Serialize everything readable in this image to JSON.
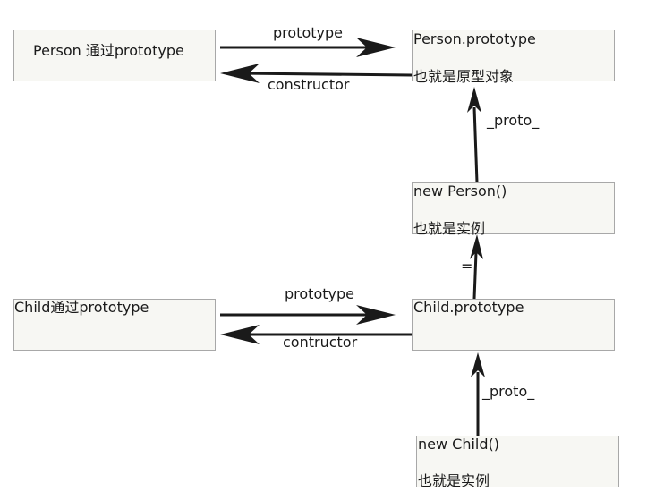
{
  "nodes": {
    "person": {
      "title": "Person 通过prototype"
    },
    "person_prototype": {
      "title": "Person.prototype",
      "subtitle": "也就是原型对象"
    },
    "new_person": {
      "title": "new Person()",
      "subtitle": "也就是实例"
    },
    "child": {
      "title": "Child通过prototype"
    },
    "child_prototype": {
      "title": "Child.prototype"
    },
    "new_child": {
      "title": "new Child()",
      "subtitle": "也就是实例"
    }
  },
  "edges": {
    "person_prototype_label": "prototype",
    "person_constructor_label": "constructor",
    "person_proto_label": "_proto_",
    "equals_label": "=",
    "child_prototype_label": "prototype",
    "child_constructor_label": "contructor",
    "child_proto_label": "_proto_"
  },
  "colors": {
    "box_fill": "#f7f7f3",
    "box_border": "#a8a8a8",
    "arrow": "#1a1a1a"
  }
}
